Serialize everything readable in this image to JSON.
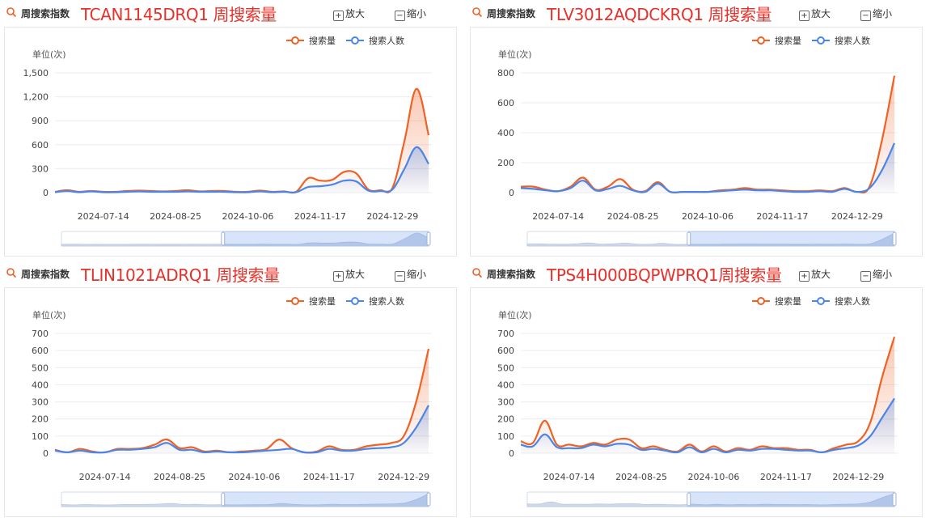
{
  "colors": {
    "search_volume": "#ef6124",
    "search_people": "#4a86e8",
    "title": "#e8302a"
  },
  "common": {
    "header_label": "周搜索指数",
    "zoom_in": "放大",
    "zoom_out": "缩小",
    "legend_volume": "搜索量",
    "legend_people": "搜索人数",
    "unit": "单位(次)",
    "x_ticks": [
      "2024-07-14",
      "2024-08-25",
      "2024-10-06",
      "2024-11-17",
      "2024-12-29"
    ]
  },
  "chart_data": [
    {
      "type": "area",
      "title": "TCAN1145DRQ1 周搜索量",
      "ylabel": "单位(次)",
      "ylim": [
        0,
        1500
      ],
      "yticks": [
        "0",
        "300",
        "600",
        "900",
        "1,200",
        "1,500"
      ],
      "x": [
        "2024-06-16",
        "2024-06-23",
        "2024-06-30",
        "2024-07-07",
        "2024-07-14",
        "2024-07-21",
        "2024-07-28",
        "2024-08-04",
        "2024-08-11",
        "2024-08-18",
        "2024-08-25",
        "2024-09-01",
        "2024-09-08",
        "2024-09-15",
        "2024-09-22",
        "2024-09-29",
        "2024-10-06",
        "2024-10-13",
        "2024-10-20",
        "2024-10-27",
        "2024-11-03",
        "2024-11-10",
        "2024-11-17",
        "2024-11-24",
        "2024-12-01",
        "2024-12-08",
        "2024-12-15",
        "2024-12-22",
        "2024-12-29",
        "2025-01-05",
        "2025-01-12",
        "2025-01-19"
      ],
      "series": [
        {
          "name": "搜索量",
          "values": [
            10,
            30,
            10,
            20,
            10,
            10,
            20,
            25,
            20,
            15,
            20,
            30,
            15,
            20,
            20,
            10,
            10,
            25,
            10,
            15,
            10,
            180,
            150,
            160,
            260,
            240,
            40,
            30,
            60,
            650,
            1300,
            720
          ]
        },
        {
          "name": "搜索人数",
          "values": [
            5,
            20,
            5,
            15,
            5,
            5,
            10,
            15,
            10,
            10,
            10,
            15,
            10,
            10,
            10,
            5,
            5,
            15,
            5,
            10,
            5,
            70,
            80,
            100,
            150,
            140,
            25,
            20,
            40,
            300,
            570,
            360
          ]
        }
      ]
    },
    {
      "type": "area",
      "title": "TLV3012AQDCKRQ1 周搜索量",
      "ylabel": "单位(次)",
      "ylim": [
        0,
        800
      ],
      "yticks": [
        "0",
        "200",
        "400",
        "600",
        "800"
      ],
      "x": [
        "2024-06-23",
        "2024-06-30",
        "2024-07-07",
        "2024-07-14",
        "2024-07-21",
        "2024-07-28",
        "2024-08-04",
        "2024-08-11",
        "2024-08-18",
        "2024-08-25",
        "2024-09-01",
        "2024-09-08",
        "2024-09-15",
        "2024-09-22",
        "2024-09-29",
        "2024-10-06",
        "2024-10-13",
        "2024-10-20",
        "2024-10-27",
        "2024-11-03",
        "2024-11-10",
        "2024-11-17",
        "2024-11-24",
        "2024-12-01",
        "2024-12-08",
        "2024-12-15",
        "2024-12-22",
        "2024-12-29",
        "2025-01-05",
        "2025-01-12",
        "2025-01-19"
      ],
      "series": [
        {
          "name": "搜索量",
          "values": [
            40,
            40,
            20,
            10,
            40,
            100,
            20,
            40,
            90,
            20,
            10,
            70,
            5,
            5,
            5,
            5,
            15,
            20,
            30,
            20,
            20,
            15,
            10,
            10,
            15,
            10,
            30,
            5,
            40,
            350,
            780
          ]
        },
        {
          "name": "搜索人数",
          "values": [
            30,
            25,
            15,
            10,
            30,
            80,
            15,
            25,
            45,
            15,
            5,
            60,
            5,
            5,
            5,
            5,
            10,
            15,
            20,
            15,
            15,
            10,
            5,
            5,
            10,
            5,
            25,
            5,
            30,
            150,
            330
          ]
        }
      ]
    },
    {
      "type": "area",
      "title": "TLIN1021ADRQ1 周搜索量",
      "ylabel": "单位(次)",
      "ylim": [
        0,
        700
      ],
      "yticks": [
        "0",
        "100",
        "200",
        "300",
        "400",
        "500",
        "600",
        "700"
      ],
      "x": [
        "2024-06-16",
        "2024-06-23",
        "2024-06-30",
        "2024-07-07",
        "2024-07-14",
        "2024-07-21",
        "2024-07-28",
        "2024-08-04",
        "2024-08-11",
        "2024-08-18",
        "2024-08-25",
        "2024-09-01",
        "2024-09-08",
        "2024-09-15",
        "2024-09-22",
        "2024-09-29",
        "2024-10-06",
        "2024-10-13",
        "2024-10-20",
        "2024-10-27",
        "2024-11-03",
        "2024-11-10",
        "2024-11-17",
        "2024-11-24",
        "2024-12-01",
        "2024-12-08",
        "2024-12-15",
        "2024-12-22",
        "2024-12-29",
        "2025-01-05",
        "2025-01-12"
      ],
      "series": [
        {
          "name": "搜索量",
          "values": [
            20,
            5,
            25,
            10,
            5,
            25,
            25,
            30,
            50,
            80,
            30,
            35,
            10,
            15,
            5,
            10,
            15,
            25,
            80,
            30,
            5,
            10,
            40,
            20,
            20,
            40,
            50,
            60,
            100,
            300,
            610
          ]
        },
        {
          "name": "搜索人数",
          "values": [
            15,
            5,
            15,
            5,
            5,
            20,
            20,
            25,
            35,
            60,
            20,
            20,
            5,
            10,
            5,
            5,
            10,
            15,
            20,
            25,
            5,
            5,
            25,
            15,
            15,
            25,
            30,
            35,
            60,
            150,
            280
          ]
        }
      ]
    },
    {
      "type": "area",
      "title": "TPS4H000BQPWPRQ1周搜索量",
      "ylabel": "单位(次)",
      "ylim": [
        0,
        700
      ],
      "yticks": [
        "0",
        "100",
        "200",
        "300",
        "400",
        "500",
        "600",
        "700"
      ],
      "x": [
        "2024-06-16",
        "2024-06-23",
        "2024-06-30",
        "2024-07-07",
        "2024-07-14",
        "2024-07-21",
        "2024-07-28",
        "2024-08-04",
        "2024-08-11",
        "2024-08-18",
        "2024-08-25",
        "2024-09-01",
        "2024-09-08",
        "2024-09-15",
        "2024-09-22",
        "2024-09-29",
        "2024-10-06",
        "2024-10-13",
        "2024-10-20",
        "2024-10-27",
        "2024-11-03",
        "2024-11-10",
        "2024-11-17",
        "2024-11-24",
        "2024-12-01",
        "2024-12-08",
        "2024-12-15",
        "2024-12-22",
        "2024-12-29",
        "2025-01-05",
        "2025-01-12",
        "2025-01-19"
      ],
      "series": [
        {
          "name": "搜索量",
          "values": [
            70,
            60,
            190,
            50,
            50,
            40,
            60,
            50,
            80,
            80,
            30,
            40,
            20,
            10,
            50,
            10,
            40,
            10,
            30,
            20,
            40,
            30,
            30,
            20,
            20,
            5,
            30,
            50,
            70,
            180,
            450,
            680
          ]
        },
        {
          "name": "搜索人数",
          "values": [
            50,
            40,
            110,
            35,
            30,
            30,
            50,
            40,
            55,
            50,
            20,
            25,
            15,
            5,
            35,
            5,
            25,
            5,
            20,
            15,
            25,
            25,
            20,
            15,
            15,
            5,
            20,
            30,
            45,
            100,
            210,
            320
          ]
        }
      ]
    }
  ]
}
